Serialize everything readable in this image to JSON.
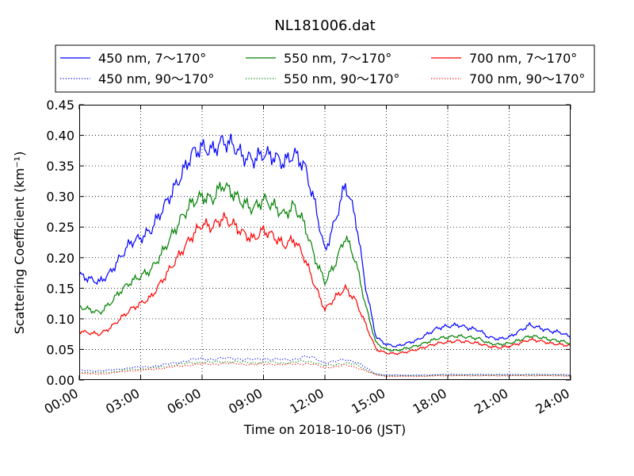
{
  "chart_data": {
    "type": "line",
    "title": "NL181006.dat",
    "xlabel": "Time on 2018-10-06 (JST)",
    "ylabel": "Scattering Coefficient (km⁻¹)",
    "xlim": [
      "2018-10-06 00:00",
      "2018-10-07 00:00"
    ],
    "ylim": [
      0,
      0.45
    ],
    "x_ticks": [
      "00:00",
      "03:00",
      "06:00",
      "09:00",
      "12:00",
      "15:00",
      "18:00",
      "21:00",
      "24:00"
    ],
    "y_ticks": [
      "0.00",
      "0.05",
      "0.10",
      "0.15",
      "0.20",
      "0.25",
      "0.30",
      "0.35",
      "0.40",
      "0.45"
    ],
    "grid": true,
    "legend_position": "top",
    "x": [
      "00:00",
      "00:30",
      "01:00",
      "01:30",
      "02:00",
      "02:30",
      "03:00",
      "03:30",
      "04:00",
      "04:30",
      "05:00",
      "05:30",
      "06:00",
      "06:30",
      "07:00",
      "07:30",
      "08:00",
      "08:30",
      "09:00",
      "09:30",
      "10:00",
      "10:30",
      "11:00",
      "11:30",
      "12:00",
      "12:30",
      "13:00",
      "13:30",
      "14:00",
      "14:30",
      "15:00",
      "15:30",
      "16:00",
      "16:30",
      "17:00",
      "17:30",
      "18:00",
      "18:30",
      "19:00",
      "19:30",
      "20:00",
      "20:30",
      "21:00",
      "21:30",
      "22:00",
      "22:30",
      "23:00",
      "23:30",
      "24:00"
    ],
    "series": [
      {
        "name": "450 nm, 7～170°",
        "color": "#0000ff",
        "style": "solid",
        "values": [
          0.172,
          0.165,
          0.16,
          0.175,
          0.2,
          0.225,
          0.232,
          0.245,
          0.275,
          0.305,
          0.335,
          0.37,
          0.38,
          0.375,
          0.39,
          0.385,
          0.365,
          0.36,
          0.37,
          0.365,
          0.355,
          0.37,
          0.35,
          0.29,
          0.21,
          0.26,
          0.32,
          0.265,
          0.15,
          0.07,
          0.058,
          0.055,
          0.06,
          0.065,
          0.075,
          0.085,
          0.088,
          0.09,
          0.085,
          0.082,
          0.07,
          0.067,
          0.07,
          0.08,
          0.09,
          0.085,
          0.08,
          0.078,
          0.07
        ]
      },
      {
        "name": "450 nm, 90～170°",
        "color": "#0000ff",
        "style": "dotted",
        "values": [
          0.016,
          0.015,
          0.015,
          0.016,
          0.018,
          0.02,
          0.021,
          0.022,
          0.024,
          0.027,
          0.03,
          0.033,
          0.035,
          0.034,
          0.035,
          0.036,
          0.034,
          0.033,
          0.035,
          0.034,
          0.033,
          0.034,
          0.038,
          0.036,
          0.028,
          0.03,
          0.034,
          0.03,
          0.02,
          0.01,
          0.008,
          0.008,
          0.008,
          0.008,
          0.008,
          0.009,
          0.009,
          0.009,
          0.009,
          0.009,
          0.009,
          0.009,
          0.009,
          0.009,
          0.009,
          0.009,
          0.009,
          0.009,
          0.008
        ]
      },
      {
        "name": "550 nm, 7～170°",
        "color": "#008000",
        "style": "solid",
        "values": [
          0.12,
          0.115,
          0.11,
          0.125,
          0.145,
          0.16,
          0.17,
          0.18,
          0.205,
          0.235,
          0.265,
          0.29,
          0.3,
          0.295,
          0.32,
          0.305,
          0.29,
          0.28,
          0.295,
          0.285,
          0.27,
          0.285,
          0.255,
          0.2,
          0.16,
          0.19,
          0.235,
          0.195,
          0.12,
          0.06,
          0.05,
          0.048,
          0.052,
          0.056,
          0.062,
          0.068,
          0.07,
          0.072,
          0.07,
          0.068,
          0.06,
          0.058,
          0.06,
          0.065,
          0.072,
          0.07,
          0.066,
          0.064,
          0.06
        ]
      },
      {
        "name": "550 nm, 90～170°",
        "color": "#008000",
        "style": "dotted",
        "values": [
          0.013,
          0.012,
          0.012,
          0.013,
          0.015,
          0.017,
          0.018,
          0.019,
          0.021,
          0.024,
          0.026,
          0.028,
          0.029,
          0.029,
          0.03,
          0.03,
          0.029,
          0.028,
          0.029,
          0.029,
          0.028,
          0.029,
          0.031,
          0.029,
          0.023,
          0.025,
          0.028,
          0.025,
          0.017,
          0.009,
          0.007,
          0.007,
          0.007,
          0.007,
          0.007,
          0.008,
          0.008,
          0.008,
          0.008,
          0.008,
          0.008,
          0.008,
          0.008,
          0.008,
          0.008,
          0.008,
          0.008,
          0.008,
          0.007
        ]
      },
      {
        "name": "700 nm, 7～170°",
        "color": "#ff0000",
        "style": "solid",
        "values": [
          0.08,
          0.077,
          0.075,
          0.085,
          0.1,
          0.115,
          0.125,
          0.135,
          0.16,
          0.185,
          0.21,
          0.235,
          0.255,
          0.25,
          0.265,
          0.255,
          0.24,
          0.23,
          0.245,
          0.235,
          0.22,
          0.23,
          0.2,
          0.155,
          0.115,
          0.135,
          0.15,
          0.13,
          0.09,
          0.05,
          0.044,
          0.043,
          0.046,
          0.05,
          0.055,
          0.06,
          0.062,
          0.064,
          0.062,
          0.06,
          0.055,
          0.053,
          0.055,
          0.06,
          0.066,
          0.064,
          0.06,
          0.058,
          0.056
        ]
      },
      {
        "name": "700 nm, 90～170°",
        "color": "#ff0000",
        "style": "dotted",
        "values": [
          0.011,
          0.01,
          0.01,
          0.011,
          0.013,
          0.015,
          0.016,
          0.017,
          0.019,
          0.021,
          0.023,
          0.025,
          0.026,
          0.026,
          0.027,
          0.027,
          0.026,
          0.025,
          0.026,
          0.026,
          0.025,
          0.026,
          0.027,
          0.025,
          0.02,
          0.022,
          0.024,
          0.021,
          0.015,
          0.008,
          0.006,
          0.006,
          0.006,
          0.006,
          0.006,
          0.007,
          0.007,
          0.007,
          0.007,
          0.007,
          0.007,
          0.007,
          0.007,
          0.007,
          0.007,
          0.007,
          0.007,
          0.007,
          0.006
        ]
      }
    ]
  }
}
